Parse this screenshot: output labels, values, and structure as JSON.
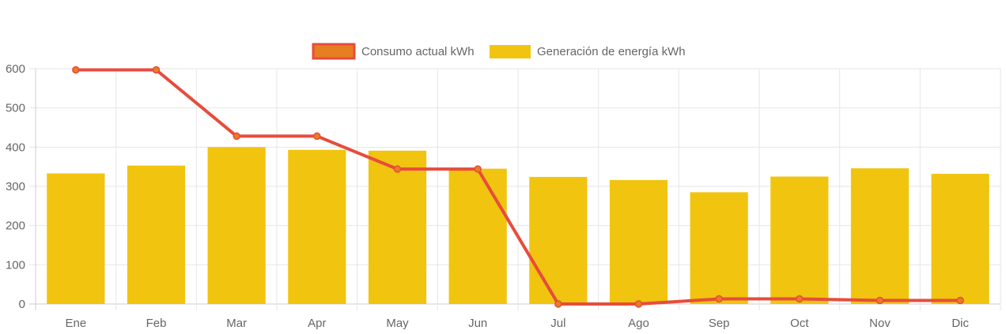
{
  "chart_data": {
    "type": "bar",
    "categories": [
      "Ene",
      "Feb",
      "Mar",
      "Apr",
      "May",
      "Jun",
      "Jul",
      "Ago",
      "Sep",
      "Oct",
      "Nov",
      "Dic"
    ],
    "series": [
      {
        "name": "Consumo actual kWh",
        "type": "line",
        "color": "#e74c3c",
        "fill": "#e67e22",
        "values": [
          597,
          597,
          428,
          428,
          344,
          344,
          0,
          0,
          13,
          13,
          9,
          9
        ]
      },
      {
        "name": "Generación de energía kWh",
        "type": "bar",
        "color": "#f1c40f",
        "values": [
          333,
          353,
          400,
          393,
          391,
          345,
          324,
          316,
          285,
          325,
          346,
          332
        ]
      }
    ],
    "yticks": [
      "0",
      "100",
      "200",
      "300",
      "400",
      "500",
      "600"
    ],
    "ylim": [
      0,
      600
    ],
    "grid": true,
    "legend": "top-center"
  }
}
